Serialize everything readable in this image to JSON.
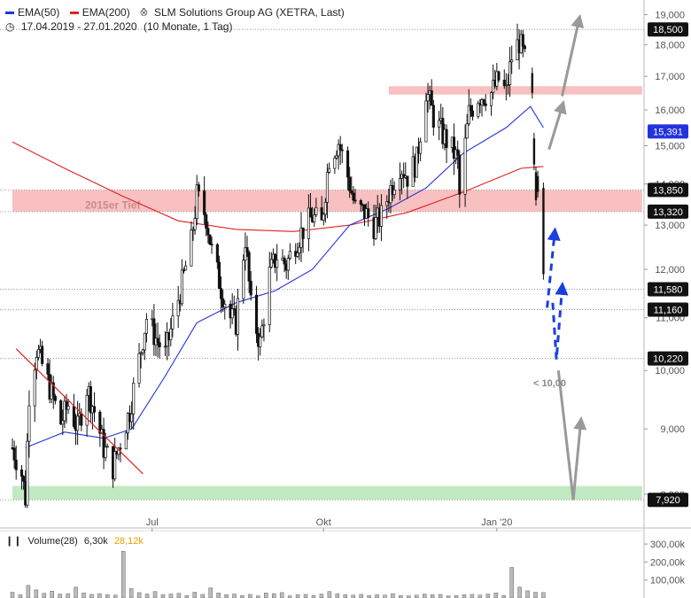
{
  "header": {
    "ema50_label": "EMA(50)",
    "ema200_label": "EMA(200)",
    "instrument": "SLM Solutions Group AG (XETRA, Last)",
    "period": "17.04.2019 - 27.01.2020",
    "period_detail": "(10 Monate, 1 Tag)"
  },
  "colors": {
    "ema50": "#2233dd",
    "ema200": "#e02020",
    "candles": "#111111",
    "resistance_zone": "#f7b5b5",
    "support_zone": "#b7e6b7",
    "projection_gray": "#999999",
    "projection_blue": "#1a3ee0",
    "badge_dark": "#111111",
    "badge_blue": "#2233dd",
    "volume_label_value": "#e8a000"
  },
  "chart_data": {
    "type": "candlestick",
    "y_axis": {
      "min": 7.6,
      "max": 19.2,
      "scale": "log",
      "ticks": [
        "8,000",
        "9,000",
        "10,000",
        "11,000",
        "12,000",
        "13,000",
        "14,000",
        "15,000",
        "16,000",
        "17,000",
        "18,000",
        "19,000"
      ],
      "tick_values": [
        8,
        9,
        10,
        11,
        12,
        13,
        14,
        15,
        16,
        17,
        18,
        19
      ]
    },
    "x_axis": {
      "ticks": [
        "Jul",
        "Okt",
        "Jan '20"
      ],
      "tick_dates": [
        "2019-07-01",
        "2019-10-01",
        "2020-01-02"
      ],
      "start": "2019-04-17",
      "end": "2020-01-27"
    },
    "price_series": [
      {
        "d": "2019-04-17",
        "c": 8.7
      },
      {
        "d": "2019-04-22",
        "c": 8.3
      },
      {
        "d": "2019-04-24",
        "c": 7.95
      },
      {
        "d": "2019-04-26",
        "c": 9.6
      },
      {
        "d": "2019-04-30",
        "c": 10.4
      },
      {
        "d": "2019-05-03",
        "c": 10.1
      },
      {
        "d": "2019-05-08",
        "c": 9.6
      },
      {
        "d": "2019-05-13",
        "c": 9.1
      },
      {
        "d": "2019-05-17",
        "c": 9.4
      },
      {
        "d": "2019-05-22",
        "c": 9.0
      },
      {
        "d": "2019-05-27",
        "c": 9.7
      },
      {
        "d": "2019-05-31",
        "c": 9.3
      },
      {
        "d": "2019-06-05",
        "c": 8.7
      },
      {
        "d": "2019-06-10",
        "c": 8.4
      },
      {
        "d": "2019-06-14",
        "c": 8.8
      },
      {
        "d": "2019-06-19",
        "c": 9.3
      },
      {
        "d": "2019-06-24",
        "c": 10.2
      },
      {
        "d": "2019-06-28",
        "c": 11.0
      },
      {
        "d": "2019-07-03",
        "c": 10.6
      },
      {
        "d": "2019-07-08",
        "c": 10.3
      },
      {
        "d": "2019-07-12",
        "c": 10.9
      },
      {
        "d": "2019-07-17",
        "c": 11.7
      },
      {
        "d": "2019-07-22",
        "c": 12.6
      },
      {
        "d": "2019-07-25",
        "c": 13.7
      },
      {
        "d": "2019-07-30",
        "c": 13.2
      },
      {
        "d": "2019-08-02",
        "c": 12.4
      },
      {
        "d": "2019-08-07",
        "c": 11.6
      },
      {
        "d": "2019-08-12",
        "c": 11.0
      },
      {
        "d": "2019-08-15",
        "c": 10.9
      },
      {
        "d": "2019-08-20",
        "c": 12.7
      },
      {
        "d": "2019-08-23",
        "c": 11.2
      },
      {
        "d": "2019-08-28",
        "c": 10.5
      },
      {
        "d": "2019-09-02",
        "c": 11.9
      },
      {
        "d": "2019-09-06",
        "c": 12.3
      },
      {
        "d": "2019-09-11",
        "c": 12.1
      },
      {
        "d": "2019-09-16",
        "c": 12.6
      },
      {
        "d": "2019-09-20",
        "c": 12.9
      },
      {
        "d": "2019-09-25",
        "c": 13.2
      },
      {
        "d": "2019-09-30",
        "c": 13.0
      },
      {
        "d": "2019-10-04",
        "c": 14.7
      },
      {
        "d": "2019-10-09",
        "c": 15.1
      },
      {
        "d": "2019-10-14",
        "c": 14.2
      },
      {
        "d": "2019-10-18",
        "c": 13.4
      },
      {
        "d": "2019-10-23",
        "c": 13.3
      },
      {
        "d": "2019-10-28",
        "c": 13.0
      },
      {
        "d": "2019-11-01",
        "c": 13.2
      },
      {
        "d": "2019-11-06",
        "c": 13.9
      },
      {
        "d": "2019-11-11",
        "c": 14.5
      },
      {
        "d": "2019-11-15",
        "c": 14.2
      },
      {
        "d": "2019-11-20",
        "c": 14.6
      },
      {
        "d": "2019-11-25",
        "c": 16.6
      },
      {
        "d": "2019-11-29",
        "c": 15.8
      },
      {
        "d": "2019-12-04",
        "c": 15.3
      },
      {
        "d": "2019-12-09",
        "c": 14.9
      },
      {
        "d": "2019-12-12",
        "c": 14.6
      },
      {
        "d": "2019-12-13",
        "c": 13.7
      },
      {
        "d": "2019-12-18",
        "c": 15.9
      },
      {
        "d": "2019-12-23",
        "c": 16.4
      },
      {
        "d": "2019-12-30",
        "c": 16.5
      },
      {
        "d": "2020-01-03",
        "c": 16.9
      },
      {
        "d": "2020-01-07",
        "c": 16.5
      },
      {
        "d": "2020-01-10",
        "c": 17.6
      },
      {
        "d": "2020-01-14",
        "c": 18.1
      },
      {
        "d": "2020-01-17",
        "c": 17.5
      },
      {
        "d": "2020-01-20",
        "c": 17.1
      }
    ],
    "ema50": [
      {
        "d": "2019-04-24",
        "v": 8.7
      },
      {
        "d": "2019-05-15",
        "v": 8.95
      },
      {
        "d": "2019-06-05",
        "v": 8.85
      },
      {
        "d": "2019-06-20",
        "v": 9.0
      },
      {
        "d": "2019-07-08",
        "v": 9.9
      },
      {
        "d": "2019-07-25",
        "v": 10.9
      },
      {
        "d": "2019-08-15",
        "v": 11.3
      },
      {
        "d": "2019-09-05",
        "v": 11.55
      },
      {
        "d": "2019-09-25",
        "v": 12.0
      },
      {
        "d": "2019-10-15",
        "v": 13.0
      },
      {
        "d": "2019-11-05",
        "v": 13.4
      },
      {
        "d": "2019-11-25",
        "v": 13.9
      },
      {
        "d": "2019-12-15",
        "v": 14.8
      },
      {
        "d": "2020-01-07",
        "v": 15.5
      },
      {
        "d": "2020-01-20",
        "v": 16.1
      },
      {
        "d": "2020-01-27",
        "v": 15.5
      }
    ],
    "ema200": [
      {
        "d": "2019-04-17",
        "v": 15.1
      },
      {
        "d": "2019-05-15",
        "v": 14.4
      },
      {
        "d": "2019-06-15",
        "v": 13.7
      },
      {
        "d": "2019-07-15",
        "v": 13.1
      },
      {
        "d": "2019-08-15",
        "v": 12.9
      },
      {
        "d": "2019-09-15",
        "v": 12.85
      },
      {
        "d": "2019-10-15",
        "v": 13.0
      },
      {
        "d": "2019-11-15",
        "v": 13.3
      },
      {
        "d": "2019-12-15",
        "v": 13.8
      },
      {
        "d": "2020-01-15",
        "v": 14.4
      },
      {
        "d": "2020-01-27",
        "v": 14.45
      }
    ],
    "zones": [
      {
        "kind": "resistance",
        "low": 16.45,
        "high": 16.7,
        "from": "2019-11-05",
        "to": "2020-03-20"
      },
      {
        "kind": "resistance",
        "low": 13.32,
        "high": 13.85,
        "from": "2019-04-17",
        "to": "2020-03-20",
        "label": "2015er Tief"
      },
      {
        "kind": "support",
        "low": 7.92,
        "high": 8.12,
        "from": "2019-04-17",
        "to": "2020-03-20"
      }
    ],
    "levels": [
      {
        "value": 18.5,
        "label": "18,500",
        "style": "dark"
      },
      {
        "value": 15.391,
        "label": "15,391",
        "style": "blue"
      },
      {
        "value": 13.85,
        "label": "13,850",
        "style": "dark"
      },
      {
        "value": 13.32,
        "label": "13,320",
        "style": "dark"
      },
      {
        "value": 11.58,
        "label": "11,580",
        "style": "dark"
      },
      {
        "value": 11.16,
        "label": "11,160",
        "style": "dark"
      },
      {
        "value": 10.22,
        "label": "10,220",
        "style": "dark"
      },
      {
        "value": 7.92,
        "label": "7,920",
        "style": "dark"
      }
    ],
    "annotations": [
      {
        "text": "2015er Tief"
      },
      {
        "text": "< 10,00"
      }
    ],
    "volume": {
      "label": "Volume(28)",
      "value": "6,30k",
      "avg": "28,12k",
      "ticks": [
        "100,00k",
        "200,00k",
        "300,00k"
      ],
      "tick_values": [
        100000,
        200000,
        300000
      ],
      "max": 330000,
      "bars": [
        32000,
        18000,
        70000,
        45000,
        26000,
        38000,
        22000,
        24000,
        60000,
        28000,
        20000,
        24000,
        18000,
        16000,
        260000,
        52000,
        30000,
        22000,
        36000,
        18000,
        22000,
        26000,
        14000,
        32000,
        20000,
        56000,
        28000,
        18000,
        22000,
        14000,
        20000,
        12000,
        28000,
        24000,
        30000,
        12000,
        18000,
        20000,
        14000,
        22000,
        36000,
        24000,
        18000,
        16000,
        20000,
        14000,
        18000,
        16000,
        24000,
        14000,
        12000,
        16000,
        22000,
        18000,
        20000,
        12000,
        14000,
        18000,
        20000,
        16000,
        22000,
        28000,
        14000,
        170000,
        60000,
        40000,
        32000,
        30000
      ]
    }
  }
}
